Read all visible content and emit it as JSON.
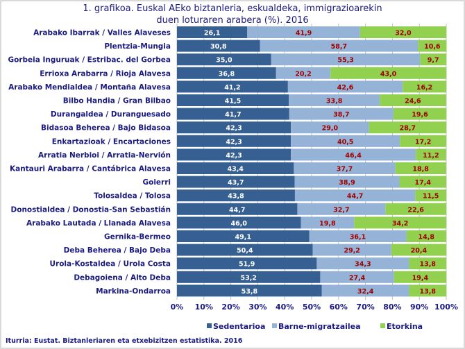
{
  "chart_data": {
    "type": "bar",
    "orientation": "horizontal",
    "stacked": "percent",
    "title_line1": "1. grafikoa. Euskal AEko biztanleria, eskualdeka, immigrazioarekin",
    "title_line2": "duen loturaren arabera (%). 2016",
    "categories": [
      "Arabako Ibarrak / Valles Alaveses",
      "Plentzia-Mungia",
      "Gorbeia Inguruak / Estribac. del Gorbea",
      "Errioxa Arabarra / Rioja Alavesa",
      "Arabako Mendialdea / Montaña Alavesa",
      "Bilbo Handia / Gran Bilbao",
      "Durangaldea / Duranguesado",
      "Bidasoa Beherea / Bajo Bidasoa",
      "Enkartazioak / Encartaciones",
      "Arratia Nerbioi / Arratia-Nervión",
      "Kantauri Arabarra / Cantábrica Alavesa",
      "Goierri",
      "Tolosaldea / Tolosa",
      "Donostialdea / Donostia-San Sebastián",
      "Arabako Lautada / Llanada Alavesa",
      "Gernika-Bermeo",
      "Deba Beherea / Bajo Deba",
      "Urola-Kostaldea / Urola Costa",
      "Debagoiena / Alto Deba",
      "Markina-Ondarroa"
    ],
    "series": [
      {
        "name": "Sedentarioa",
        "color": "#376092",
        "label_color": "#ffffff",
        "values": [
          26.1,
          30.8,
          35.0,
          36.8,
          41.2,
          41.5,
          41.7,
          42.3,
          42.3,
          42.3,
          43.4,
          43.7,
          43.8,
          44.7,
          46.0,
          49.1,
          50.4,
          51.9,
          53.2,
          53.8
        ]
      },
      {
        "name": "Barne-migratzailea",
        "color": "#95b3d7",
        "label_color": "#a00000",
        "values": [
          41.9,
          58.7,
          55.3,
          20.2,
          42.6,
          33.8,
          38.7,
          29.0,
          40.5,
          46.4,
          37.7,
          38.9,
          44.7,
          32.7,
          19.8,
          36.1,
          29.2,
          34.3,
          27.4,
          32.4
        ]
      },
      {
        "name": "Etorkina",
        "color": "#92d050",
        "label_color": "#a00000",
        "values": [
          32.0,
          10.6,
          9.7,
          43.0,
          16.2,
          24.6,
          19.6,
          28.7,
          17.2,
          11.2,
          18.8,
          17.4,
          11.5,
          22.6,
          34.2,
          14.8,
          20.4,
          13.8,
          19.4,
          13.8
        ]
      }
    ],
    "xlim": [
      0,
      100
    ],
    "xticks": [
      "0%",
      "10%",
      "20%",
      "30%",
      "40%",
      "50%",
      "60%",
      "70%",
      "80%",
      "90%",
      "100%"
    ],
    "grid": true,
    "legend_position": "bottom",
    "text_color": "#1a1a80"
  },
  "source": "Iturria: Eustat. Biztanleriaren eta etxebizitzen estatistika. 2016"
}
